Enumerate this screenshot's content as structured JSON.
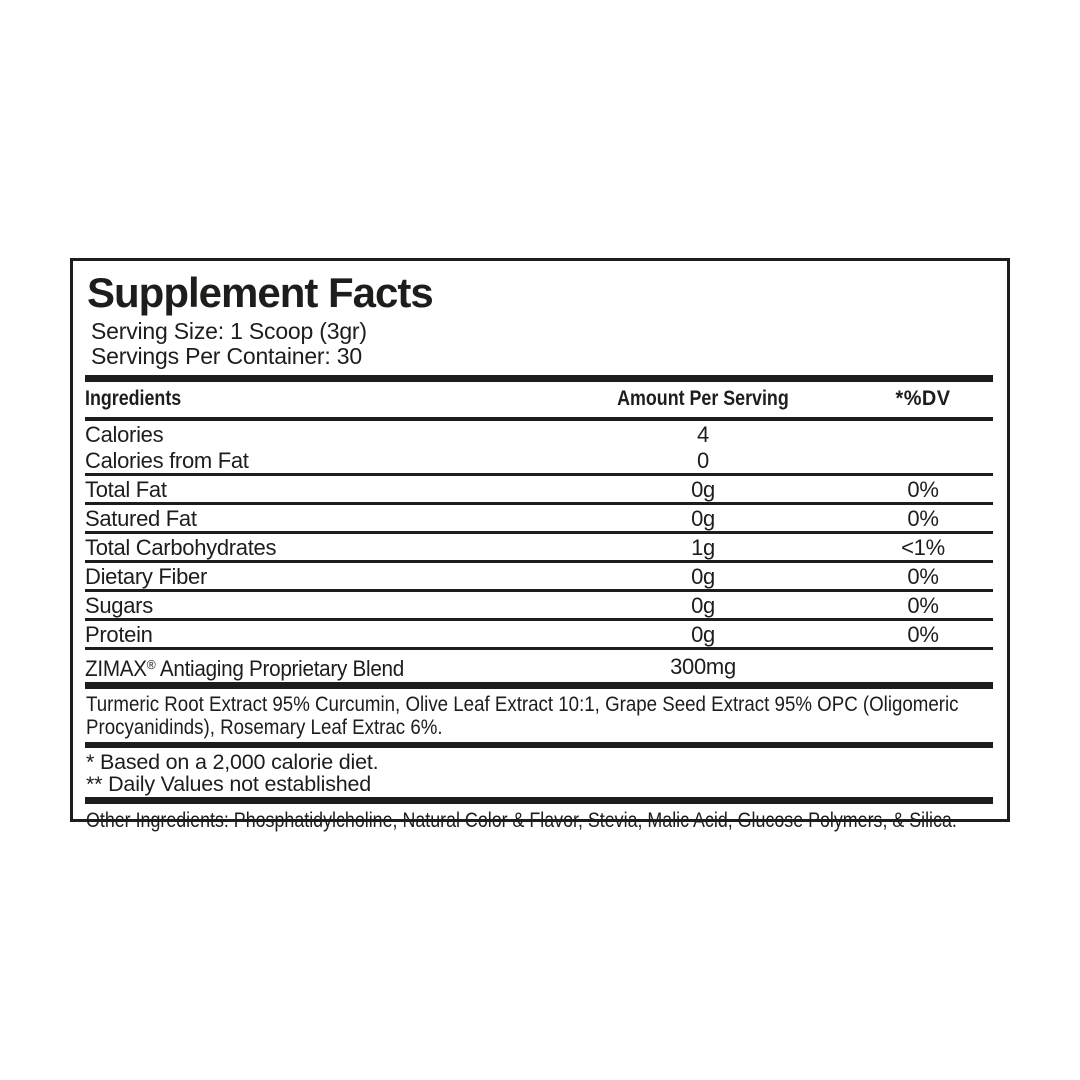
{
  "colors": {
    "text": "#1d1d1b",
    "border": "#1d1d1b",
    "background": "#ffffff"
  },
  "label": {
    "title": "Supplement Facts",
    "serving_size": "Serving Size: 1 Scoop (3gr)",
    "servings_per_container": "Servings Per Container: 30",
    "columns": {
      "ingredients": "Ingredients",
      "amount": "Amount Per Serving",
      "dv": "*%DV"
    },
    "rows": [
      {
        "name": "Calories",
        "amount": "4",
        "dv": ""
      },
      {
        "name": "Calories from Fat",
        "amount": "0",
        "dv": ""
      },
      {
        "name": "Total Fat",
        "amount": "0g",
        "dv": "0%"
      },
      {
        "name": "Satured Fat",
        "amount": "0g",
        "dv": "0%"
      },
      {
        "name": "Total Carbohydrates",
        "amount": "1g",
        "dv": "<1%"
      },
      {
        "name": "Dietary Fiber",
        "amount": "0g",
        "dv": "0%"
      },
      {
        "name": "Sugars",
        "amount": "0g",
        "dv": "0%"
      },
      {
        "name": "Protein",
        "amount": "0g",
        "dv": "0%"
      }
    ],
    "blend": {
      "brand": "ZIMAX",
      "reg_mark": "®",
      "rest": " Antiaging Proprietary Blend",
      "amount": "300mg"
    },
    "blend_description": "Turmeric Root Extract 95% Curcumin, Olive Leaf Extract 10:1, Grape Seed Extract 95% OPC (Oligomeric Procyanidinds), Rosemary Leaf Extrac 6%.",
    "footnotes": [
      "* Based on a 2,000 calorie diet.",
      "** Daily Values not established"
    ],
    "other_ingredients": "Other Ingredients: Phosphatidylcholine, Natural Color & Flavor, Stevia, Malic Acid, Glucose Polymers, & Silica."
  }
}
